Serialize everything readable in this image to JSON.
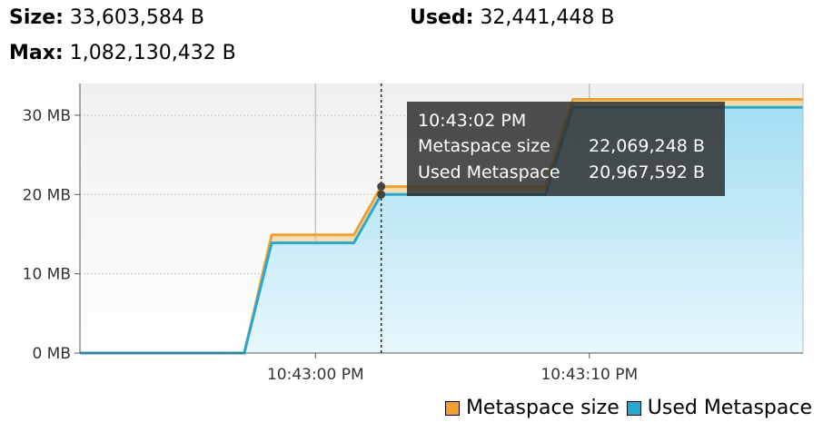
{
  "stats": {
    "size_label": "Size:",
    "size_value": "33,603,584 B",
    "used_label": "Used:",
    "used_value": "32,441,448 B",
    "max_label": "Max:",
    "max_value": "1,082,130,432 B"
  },
  "tooltip": {
    "time": "10:43:02 PM",
    "rows": [
      {
        "label": "Metaspace size",
        "value": "22,069,248 B"
      },
      {
        "label": "Used Metaspace",
        "value": "20,967,592 B"
      }
    ]
  },
  "colors": {
    "metaspace_size": "#f0a030",
    "used_metaspace": "#2aa8d0"
  },
  "chart_data": {
    "type": "area",
    "title": "",
    "xlabel": "",
    "ylabel": "",
    "y_unit": "MB",
    "ylim": [
      0,
      34
    ],
    "yticks": [
      0,
      10,
      20,
      30
    ],
    "ytick_labels": [
      "0 MB",
      "10 MB",
      "20 MB",
      "30 MB"
    ],
    "xticks": [
      0,
      10
    ],
    "xtick_labels": [
      "10:43:00 PM",
      "10:43:10 PM"
    ],
    "x_unit": "seconds after 10:43:00 PM",
    "xlim": [
      -8.6,
      17.8
    ],
    "grid": true,
    "legend": "bottom-right",
    "hover_x": 2.4,
    "series": [
      {
        "name": "Metaspace size",
        "x": [
          -8.6,
          -2.6,
          -1.6,
          1.4,
          2.4,
          8.4,
          9.4,
          17.8
        ],
        "values": [
          0,
          0,
          14.9,
          14.9,
          21.0,
          21.0,
          32.0,
          32.0
        ]
      },
      {
        "name": "Used Metaspace",
        "x": [
          -8.6,
          -2.6,
          -1.6,
          1.4,
          2.4,
          8.4,
          9.4,
          17.8
        ],
        "values": [
          0,
          0,
          13.9,
          13.9,
          20.0,
          20.0,
          31.0,
          31.0
        ]
      }
    ]
  }
}
